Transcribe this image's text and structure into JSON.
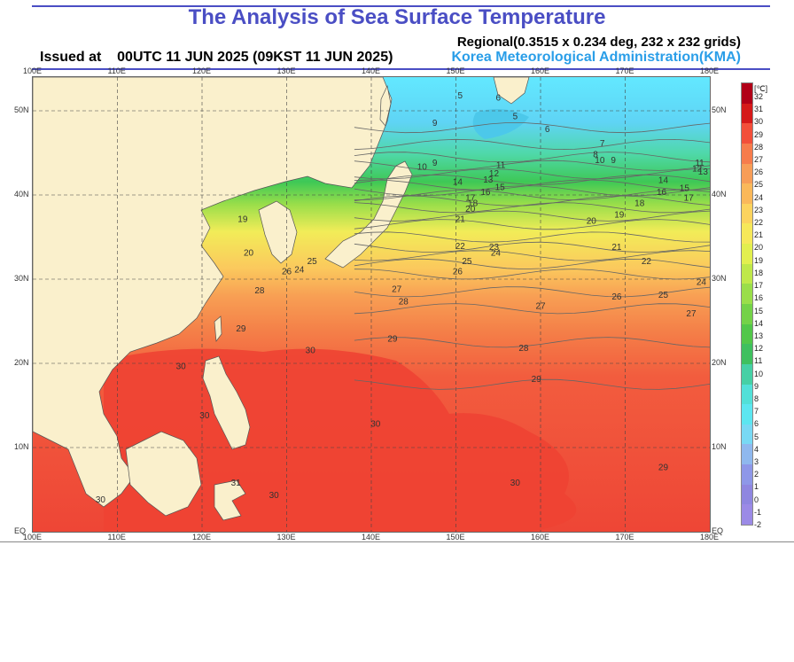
{
  "header": {
    "title": "The Analysis of Sea Surface Temperature",
    "regional": "Regional(0.3515 x 0.234 deg, 232 x 232 grids)",
    "issued": "Issued at    00UTC 11 JUN 2025 (09KST 11 JUN 2025)",
    "agency": "Korea Meteorological Administration(KMA)"
  },
  "map": {
    "lon_labels": [
      "100E",
      "110E",
      "120E",
      "130E",
      "140E",
      "150E",
      "160E",
      "170E",
      "180E"
    ],
    "lat_labels": [
      "50N",
      "40N",
      "30N",
      "20N",
      "10N",
      "EQ"
    ],
    "lon_range": [
      100,
      180
    ],
    "lat_range": [
      0,
      54
    ],
    "contour_labels": [
      {
        "v": "5",
        "lon": 150.5,
        "lat": 51.5
      },
      {
        "v": "6",
        "lon": 155.0,
        "lat": 51.2
      },
      {
        "v": "5",
        "lon": 157.0,
        "lat": 49.0
      },
      {
        "v": "6",
        "lon": 160.8,
        "lat": 47.5
      },
      {
        "v": "9",
        "lon": 147.5,
        "lat": 48.2
      },
      {
        "v": "7",
        "lon": 167.3,
        "lat": 45.8
      },
      {
        "v": "8",
        "lon": 166.5,
        "lat": 44.5
      },
      {
        "v": "10",
        "lon": 167.0,
        "lat": 43.8
      },
      {
        "v": "9",
        "lon": 168.6,
        "lat": 43.8
      },
      {
        "v": "9",
        "lon": 147.5,
        "lat": 43.5
      },
      {
        "v": "10",
        "lon": 146.0,
        "lat": 43.0
      },
      {
        "v": "11",
        "lon": 155.3,
        "lat": 43.2
      },
      {
        "v": "12",
        "lon": 154.5,
        "lat": 42.2
      },
      {
        "v": "13",
        "lon": 153.8,
        "lat": 41.5
      },
      {
        "v": "14",
        "lon": 150.2,
        "lat": 41.2
      },
      {
        "v": "15",
        "lon": 155.2,
        "lat": 40.6
      },
      {
        "v": "16",
        "lon": 153.5,
        "lat": 40.0
      },
      {
        "v": "17",
        "lon": 151.7,
        "lat": 39.3
      },
      {
        "v": "18",
        "lon": 152.0,
        "lat": 38.7
      },
      {
        "v": "20",
        "lon": 151.7,
        "lat": 38.0
      },
      {
        "v": "21",
        "lon": 150.5,
        "lat": 36.8
      },
      {
        "v": "14",
        "lon": 174.5,
        "lat": 41.4
      },
      {
        "v": "15",
        "lon": 177.0,
        "lat": 40.5
      },
      {
        "v": "16",
        "lon": 174.3,
        "lat": 40.0
      },
      {
        "v": "17",
        "lon": 177.5,
        "lat": 39.3
      },
      {
        "v": "18",
        "lon": 171.7,
        "lat": 38.7
      },
      {
        "v": "19",
        "lon": 169.3,
        "lat": 37.3
      },
      {
        "v": "20",
        "lon": 166.0,
        "lat": 36.6
      },
      {
        "v": "11",
        "lon": 178.8,
        "lat": 43.5
      },
      {
        "v": "12",
        "lon": 178.5,
        "lat": 42.8
      },
      {
        "v": "13",
        "lon": 179.2,
        "lat": 42.4
      },
      {
        "v": "19",
        "lon": 124.8,
        "lat": 36.8
      },
      {
        "v": "20",
        "lon": 125.5,
        "lat": 32.8
      },
      {
        "v": "22",
        "lon": 150.5,
        "lat": 33.6
      },
      {
        "v": "23",
        "lon": 154.5,
        "lat": 33.5
      },
      {
        "v": "24",
        "lon": 154.7,
        "lat": 32.8
      },
      {
        "v": "25",
        "lon": 151.3,
        "lat": 31.8
      },
      {
        "v": "26",
        "lon": 150.2,
        "lat": 30.6
      },
      {
        "v": "21",
        "lon": 169.0,
        "lat": 33.5
      },
      {
        "v": "22",
        "lon": 172.5,
        "lat": 31.8
      },
      {
        "v": "24",
        "lon": 179.0,
        "lat": 29.3
      },
      {
        "v": "25",
        "lon": 174.5,
        "lat": 27.8
      },
      {
        "v": "26",
        "lon": 169.0,
        "lat": 27.6
      },
      {
        "v": "27",
        "lon": 177.8,
        "lat": 25.6
      },
      {
        "v": "25",
        "lon": 133.0,
        "lat": 31.8
      },
      {
        "v": "26",
        "lon": 130.0,
        "lat": 30.6
      },
      {
        "v": "24",
        "lon": 131.5,
        "lat": 30.8
      },
      {
        "v": "27",
        "lon": 143.0,
        "lat": 28.5
      },
      {
        "v": "28",
        "lon": 126.8,
        "lat": 28.3
      },
      {
        "v": "28",
        "lon": 143.8,
        "lat": 27.0
      },
      {
        "v": "27",
        "lon": 160.0,
        "lat": 26.5
      },
      {
        "v": "29",
        "lon": 124.6,
        "lat": 23.8
      },
      {
        "v": "29",
        "lon": 142.5,
        "lat": 22.6
      },
      {
        "v": "28",
        "lon": 158.0,
        "lat": 21.5
      },
      {
        "v": "30",
        "lon": 132.8,
        "lat": 21.2
      },
      {
        "v": "30",
        "lon": 117.5,
        "lat": 19.3
      },
      {
        "v": "29",
        "lon": 159.5,
        "lat": 17.8
      },
      {
        "v": "30",
        "lon": 120.3,
        "lat": 13.5
      },
      {
        "v": "30",
        "lon": 140.5,
        "lat": 12.5
      },
      {
        "v": "29",
        "lon": 174.5,
        "lat": 7.3
      },
      {
        "v": "30",
        "lon": 157.0,
        "lat": 5.5
      },
      {
        "v": "30",
        "lon": 108.0,
        "lat": 3.5
      },
      {
        "v": "30",
        "lon": 128.5,
        "lat": 4.0
      },
      {
        "v": "31",
        "lon": 124.0,
        "lat": 5.5
      }
    ]
  },
  "colorbar": {
    "unit": "[℃]",
    "labels": [
      "32",
      "31",
      "30",
      "29",
      "28",
      "27",
      "26",
      "25",
      "24",
      "23",
      "22",
      "21",
      "20",
      "19",
      "18",
      "17",
      "16",
      "15",
      "14",
      "13",
      "12",
      "11",
      "10",
      "9",
      "8",
      "7",
      "6",
      "5",
      "4",
      "3",
      "2",
      "1",
      "0",
      "-1",
      "-2"
    ],
    "colors": [
      "#b10018",
      "#d51a1a",
      "#f24f3a",
      "#f67c4c",
      "#f79d57",
      "#fab85a",
      "#fcd35e",
      "#f6e85a",
      "#e2ef4f",
      "#bfe84a",
      "#9ade4a",
      "#74d248",
      "#52c74a",
      "#3fc05f",
      "#46d0a5",
      "#52e0d8",
      "#5ce6f0",
      "#78d9f4",
      "#8fb8ee",
      "#8e97e8",
      "#8f86e0",
      "#9b8ae6"
    ]
  }
}
